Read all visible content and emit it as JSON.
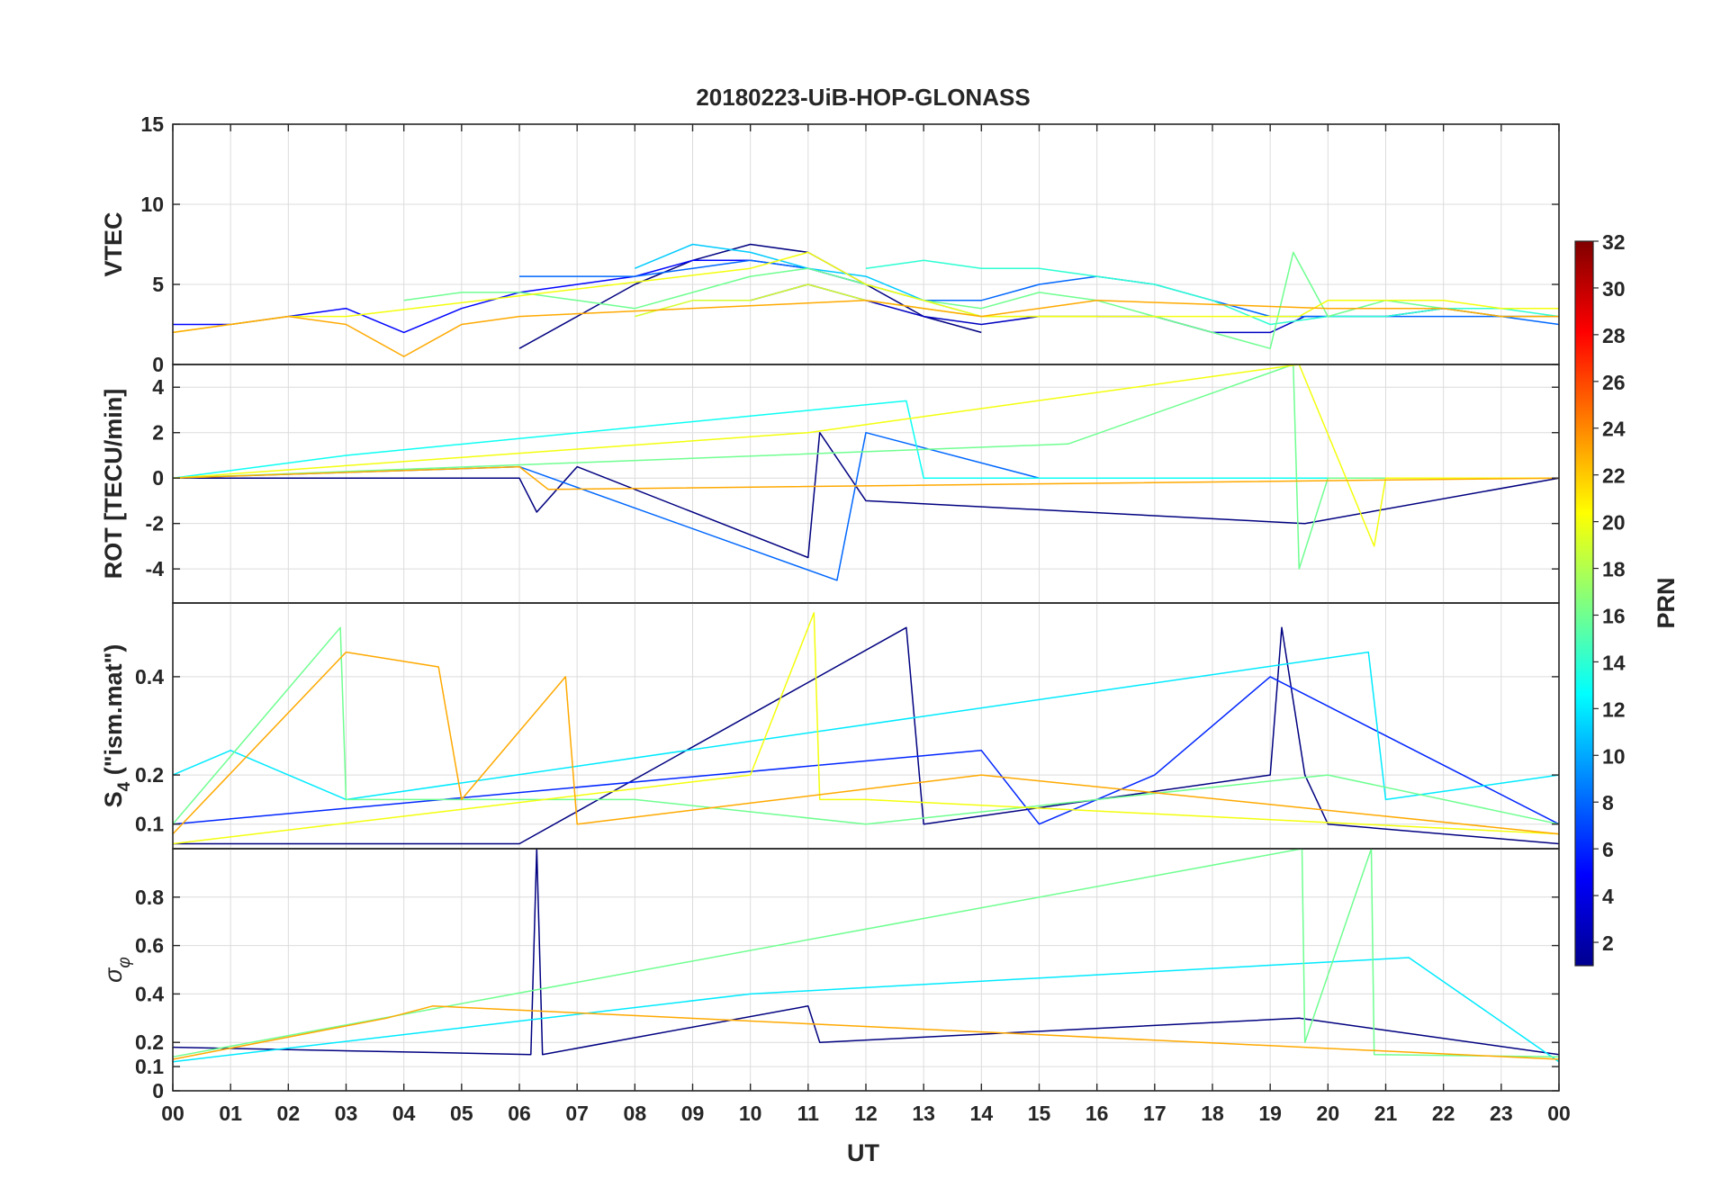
{
  "chart_data": {
    "type": "line",
    "title": "20180223-UiB-HOP-GLONASS",
    "xlabel": "UT",
    "x_tick_labels": [
      "00",
      "01",
      "02",
      "03",
      "04",
      "05",
      "06",
      "07",
      "08",
      "09",
      "10",
      "11",
      "12",
      "13",
      "14",
      "15",
      "16",
      "17",
      "18",
      "19",
      "20",
      "21",
      "22",
      "23",
      "00"
    ],
    "xlim": [
      0,
      24
    ],
    "grid": true,
    "colorbar": {
      "label": "PRN",
      "range": [
        1,
        32
      ],
      "tick_labels": [
        "2",
        "4",
        "6",
        "8",
        "10",
        "12",
        "14",
        "16",
        "18",
        "20",
        "22",
        "24",
        "26",
        "28",
        "30",
        "32"
      ],
      "tick_values": [
        2,
        4,
        6,
        8,
        10,
        12,
        14,
        16,
        18,
        20,
        22,
        24,
        26,
        28,
        30,
        32
      ]
    },
    "panels": [
      {
        "id": "vtec",
        "ylabel": "VTEC",
        "ylim": [
          0,
          15
        ],
        "yticks": [
          0,
          5,
          10,
          15
        ],
        "ytick_labels": [
          "0",
          "5",
          "10",
          "15"
        ],
        "series": [
          {
            "prn": 1,
            "name": "PRN 1",
            "x": [
              6,
              7,
              8,
              9,
              10,
              11,
              12,
              13,
              14
            ],
            "y": [
              1,
              3,
              5,
              6.5,
              7.5,
              7,
              5,
              3,
              2
            ]
          },
          {
            "prn": 3,
            "name": "PRN 3",
            "x": [
              10,
              11,
              12,
              13,
              14,
              15,
              16,
              17,
              18,
              19,
              19.6,
              20,
              21,
              22,
              23,
              24
            ],
            "y": [
              4,
              5,
              4,
              3,
              2.5,
              3,
              3,
              3,
              2,
              2,
              3,
              3,
              3,
              3.5,
              3,
              3
            ]
          },
          {
            "prn": 5,
            "name": "PRN 5",
            "x": [
              0,
              1,
              2,
              3,
              4,
              5,
              6,
              7,
              8,
              9,
              10,
              11,
              12
            ],
            "y": [
              2.5,
              2.5,
              3,
              3.5,
              2,
              3.5,
              4.5,
              5,
              5.5,
              6.5,
              6.5,
              6,
              5
            ]
          },
          {
            "prn": 8,
            "name": "PRN 8",
            "x": [
              6,
              7,
              8,
              9,
              10,
              11,
              12,
              13,
              14,
              15,
              16,
              17,
              18,
              19,
              20,
              21,
              22,
              23,
              24
            ],
            "y": [
              5.5,
              5.5,
              5.5,
              6,
              6.5,
              6,
              5,
              4,
              4,
              5,
              5.5,
              5,
              4,
              3,
              3,
              3,
              3,
              3,
              2.5
            ]
          },
          {
            "prn": 11,
            "name": "PRN 11",
            "x": [
              8,
              9,
              10,
              11,
              12,
              13,
              14
            ],
            "y": [
              6,
              7.5,
              7,
              6,
              5.5,
              4,
              3
            ]
          },
          {
            "prn": 14,
            "name": "PRN 14",
            "x": [
              12,
              13,
              14,
              15,
              16,
              17,
              18,
              19,
              20,
              21,
              22,
              23,
              24
            ],
            "y": [
              6,
              6.5,
              6,
              6,
              5.5,
              5,
              4,
              2.5,
              3,
              3,
              3.5,
              3.5,
              3
            ]
          },
          {
            "prn": 16,
            "name": "PRN 16",
            "x": [
              4,
              5,
              6,
              7,
              8,
              9,
              10,
              11,
              12,
              13,
              14,
              15,
              16,
              17,
              18,
              19,
              19.4,
              20,
              21,
              22,
              23,
              24
            ],
            "y": [
              4,
              4.5,
              4.5,
              4,
              3.5,
              4.5,
              5.5,
              6,
              5,
              4,
              3.5,
              4.5,
              4,
              3,
              2,
              1,
              7,
              3,
              4,
              3.5,
              3,
              3
            ]
          },
          {
            "prn": 19,
            "name": "PRN 19",
            "x": [
              8,
              9,
              10,
              11,
              12,
              13,
              14,
              15,
              16
            ],
            "y": [
              3,
              4,
              4,
              5,
              4,
              3.5,
              3,
              3,
              3
            ]
          },
          {
            "prn": 20,
            "name": "PRN 20",
            "x": [
              0,
              1,
              2,
              3,
              10,
              11,
              12,
              13,
              14,
              19.5,
              20,
              21,
              22,
              23,
              24
            ],
            "y": [
              2,
              2.5,
              3,
              3,
              6,
              7,
              5,
              4,
              3,
              3,
              4,
              4,
              4,
              3.5,
              3.5
            ]
          },
          {
            "prn": 23,
            "name": "PRN 23",
            "x": [
              0,
              1,
              2,
              3,
              4,
              5,
              6,
              12,
              13,
              14,
              15,
              16,
              20,
              21,
              22,
              23,
              24
            ],
            "y": [
              2,
              2.5,
              3,
              2.5,
              0.5,
              2.5,
              3,
              4,
              3.5,
              3,
              3.5,
              4,
              3.5,
              3.5,
              3.5,
              3,
              3
            ]
          }
        ]
      },
      {
        "id": "rot",
        "ylabel": "ROT [TECU/min]",
        "ylim": [
          -5.5,
          5
        ],
        "yticks": [
          -4,
          -2,
          0,
          2,
          4
        ],
        "ytick_labels": [
          "-4",
          "-2",
          "0",
          "2",
          "4"
        ],
        "series": [
          {
            "prn": 1,
            "name": "PRN 1",
            "x": [
              0,
              6,
              6.3,
              7,
              11,
              11.2,
              12,
              19.6,
              24
            ],
            "y": [
              0,
              0,
              -1.5,
              0.5,
              -3.5,
              2,
              -1,
              -2,
              0
            ]
          },
          {
            "prn": 8,
            "name": "PRN 8",
            "x": [
              0,
              6,
              11.5,
              12,
              15,
              24
            ],
            "y": [
              0,
              0.5,
              -4.5,
              2,
              0,
              0
            ]
          },
          {
            "prn": 13,
            "name": "PRN 13",
            "x": [
              0,
              3,
              12.7,
              13,
              24
            ],
            "y": [
              0,
              1,
              3.4,
              0,
              0
            ]
          },
          {
            "prn": 16,
            "name": "PRN 16",
            "x": [
              0,
              15.5,
              19.4,
              19.5,
              20,
              24
            ],
            "y": [
              0,
              1.5,
              5,
              -4,
              0,
              0
            ]
          },
          {
            "prn": 20,
            "name": "PRN 20",
            "x": [
              0,
              11,
              19.5,
              20.8,
              21,
              24
            ],
            "y": [
              0,
              2,
              5,
              -3,
              0,
              0
            ]
          },
          {
            "prn": 23,
            "name": "PRN 23",
            "x": [
              0,
              6,
              6.5,
              24
            ],
            "y": [
              0,
              0.5,
              -0.5,
              0
            ]
          }
        ]
      },
      {
        "id": "s4",
        "ylabel": "S4 (\"ism.mat\")",
        "ylabel_main": "S",
        "ylabel_sub": "4",
        "ylabel_rest": " (\"ism.mat\")",
        "ylim": [
          0.05,
          0.55
        ],
        "yticks": [
          0.1,
          0.2,
          0.4
        ],
        "ytick_labels": [
          "0.1",
          "0.2",
          "0.4"
        ],
        "series": [
          {
            "prn": 1,
            "name": "PRN 1",
            "x": [
              0,
              6,
              12.7,
              13,
              19,
              19.2,
              19.6,
              20,
              24
            ],
            "y": [
              0.06,
              0.06,
              0.5,
              0.1,
              0.2,
              0.5,
              0.2,
              0.1,
              0.06
            ]
          },
          {
            "prn": 6,
            "name": "PRN 6",
            "x": [
              0,
              14,
              15,
              17,
              19,
              24
            ],
            "y": [
              0.1,
              0.25,
              0.1,
              0.2,
              0.4,
              0.1
            ]
          },
          {
            "prn": 12,
            "name": "PRN 12",
            "x": [
              0,
              1,
              3,
              20.7,
              21,
              24
            ],
            "y": [
              0.2,
              0.25,
              0.15,
              0.45,
              0.15,
              0.2
            ]
          },
          {
            "prn": 16,
            "name": "PRN 16",
            "x": [
              0,
              2.9,
              3,
              8,
              12,
              20,
              24
            ],
            "y": [
              0.1,
              0.5,
              0.15,
              0.15,
              0.1,
              0.2,
              0.1
            ]
          },
          {
            "prn": 20,
            "name": "PRN 20",
            "x": [
              0,
              10,
              11.1,
              11.2,
              12,
              24
            ],
            "y": [
              0.06,
              0.2,
              0.53,
              0.15,
              0.15,
              0.08
            ]
          },
          {
            "prn": 23,
            "name": "PRN 23",
            "x": [
              0,
              3,
              4.6,
              5,
              6.8,
              7,
              14,
              24
            ],
            "y": [
              0.08,
              0.45,
              0.42,
              0.15,
              0.4,
              0.1,
              0.2,
              0.08
            ]
          }
        ]
      },
      {
        "id": "sigma_phi",
        "ylabel": "σφ",
        "ylabel_main": "σ",
        "ylabel_sub": "φ",
        "ylim": [
          0,
          1
        ],
        "yticks": [
          0,
          0.1,
          0.2,
          0.4,
          0.6,
          0.8
        ],
        "ytick_labels": [
          "0",
          "0.1",
          "0.2",
          "0.4",
          "0.6",
          "0.8"
        ],
        "series": [
          {
            "prn": 1,
            "name": "PRN 1",
            "x": [
              0,
              6.2,
              6.3,
              6.4,
              11,
              11.2,
              19.5,
              24
            ],
            "y": [
              0.18,
              0.15,
              1,
              0.15,
              0.35,
              0.2,
              0.3,
              0.15
            ]
          },
          {
            "prn": 12,
            "name": "PRN 12",
            "x": [
              0,
              10,
              21.4,
              24
            ],
            "y": [
              0.12,
              0.4,
              0.55,
              0.12
            ]
          },
          {
            "prn": 16,
            "name": "PRN 16",
            "x": [
              0,
              19.55,
              19.6,
              20.75,
              20.8,
              24
            ],
            "y": [
              0.14,
              1,
              0.2,
              1,
              0.15,
              0.14
            ]
          },
          {
            "prn": 23,
            "name": "PRN 23",
            "x": [
              0,
              3.7,
              4.5,
              24
            ],
            "y": [
              0.13,
              0.3,
              0.35,
              0.13
            ]
          }
        ]
      }
    ]
  }
}
